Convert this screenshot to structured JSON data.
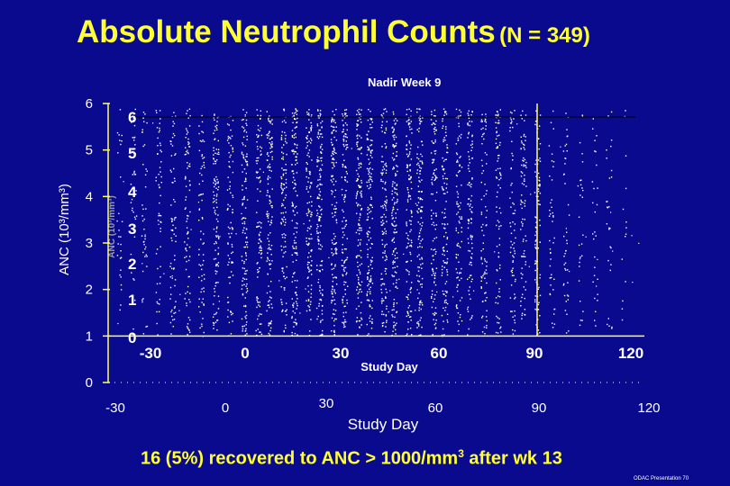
{
  "slide": {
    "title_main": "Absolute Neutrophil Counts",
    "title_n": "(N = 349)",
    "subtitle": "Nadir Week 9",
    "footer": "16 (5%) recovered to ANC > 1000/mm",
    "footer_sup": "3",
    "footer_tail": " after wk 13",
    "credit": "ODAC Presentation  70"
  },
  "colors": {
    "background": "#0a0a8f",
    "title": "#ffff33",
    "axis": "#ffff66",
    "points": "#ffffff",
    "inner_labels": "#ffffff"
  },
  "chart_data": {
    "type": "scatter",
    "title": "Absolute Neutrophil Counts (N = 349)",
    "subtitle": "Nadir Week 9",
    "xlabel": "Study Day",
    "ylabel": "ANC (10³/mm³)",
    "xlim": [
      -30,
      120
    ],
    "ylim": [
      0,
      6
    ],
    "x_ticks": [
      "-30",
      "0",
      "30",
      "60",
      "90",
      "120"
    ],
    "y_ticks": [
      "0",
      "1",
      "2",
      "3",
      "4",
      "5",
      "6"
    ],
    "reference_line_x": 90,
    "inner_plot": {
      "xlabel": "Study Day",
      "ylabel": "ANC (10³/mm³)",
      "x_ticks": [
        "-30",
        "0",
        "30",
        "60",
        "90",
        "120"
      ],
      "y_ticks": [
        "0",
        "1",
        "2",
        "3",
        "4",
        "5",
        "6"
      ]
    },
    "density_columns": [
      {
        "day": -27,
        "weight": 2
      },
      {
        "day": -23,
        "weight": 3
      },
      {
        "day": -20,
        "weight": 3
      },
      {
        "day": -16,
        "weight": 4
      },
      {
        "day": -12,
        "weight": 5
      },
      {
        "day": -8,
        "weight": 6
      },
      {
        "day": -4,
        "weight": 5
      },
      {
        "day": 0,
        "weight": 8
      },
      {
        "day": 4,
        "weight": 6
      },
      {
        "day": 8,
        "weight": 9
      },
      {
        "day": 12,
        "weight": 7
      },
      {
        "day": 15,
        "weight": 9
      },
      {
        "day": 19,
        "weight": 8
      },
      {
        "day": 22,
        "weight": 10
      },
      {
        "day": 26,
        "weight": 9
      },
      {
        "day": 29,
        "weight": 10
      },
      {
        "day": 33,
        "weight": 10
      },
      {
        "day": 36,
        "weight": 9
      },
      {
        "day": 40,
        "weight": 10
      },
      {
        "day": 43,
        "weight": 10
      },
      {
        "day": 47,
        "weight": 9
      },
      {
        "day": 50,
        "weight": 10
      },
      {
        "day": 54,
        "weight": 9
      },
      {
        "day": 57,
        "weight": 9
      },
      {
        "day": 61,
        "weight": 8
      },
      {
        "day": 64,
        "weight": 8
      },
      {
        "day": 68,
        "weight": 7
      },
      {
        "day": 71,
        "weight": 7
      },
      {
        "day": 75,
        "weight": 6
      },
      {
        "day": 79,
        "weight": 6
      },
      {
        "day": 83,
        "weight": 5
      },
      {
        "day": 86,
        "weight": 6
      },
      {
        "day": 90,
        "weight": 7
      },
      {
        "day": 94,
        "weight": 3
      },
      {
        "day": 98,
        "weight": 3
      },
      {
        "day": 102,
        "weight": 2
      },
      {
        "day": 106,
        "weight": 2
      },
      {
        "day": 110,
        "weight": 2
      },
      {
        "day": 114,
        "weight": 1
      }
    ]
  }
}
